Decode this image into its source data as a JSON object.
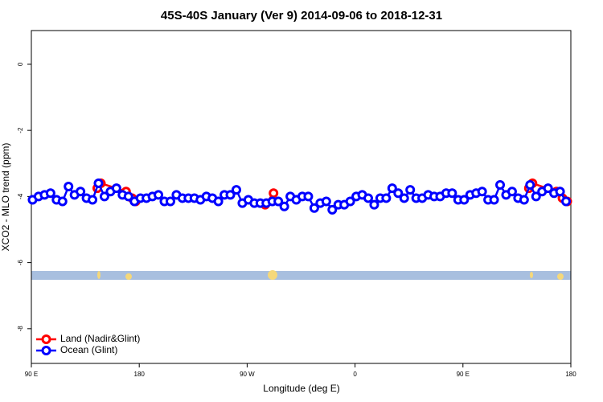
{
  "chart_data": {
    "type": "line",
    "title": "45S-40S January (Ver 9)   2014-09-06 to 2018-12-31",
    "x_label": "Longitude (deg E)",
    "y_label": "XCO2 - MLO trend (ppm)",
    "xlim": [
      90,
      540
    ],
    "ylim": [
      -9.05,
      1.02
    ],
    "xticks": [
      {
        "value": 90,
        "label": "90 E"
      },
      180,
      {
        "value": 270,
        "label": "90 W"
      },
      {
        "value": 360,
        "label": "0"
      },
      {
        "value": 450,
        "label": "90 E"
      },
      {
        "value": 540,
        "label": "180"
      }
    ],
    "yticks": [
      0,
      -2,
      -4,
      -6,
      -8
    ],
    "legend": "bottom-left",
    "series": [
      {
        "name": "Land (Nadir&Glint)",
        "color": "#ff0000",
        "x": [
          145,
          148,
          169,
          174,
          177,
          null,
          285,
          292,
          null,
          505,
          508,
          528,
          533,
          537
        ],
        "values": [
          -3.75,
          -3.6,
          -3.85,
          -4.05,
          -4.15,
          null,
          -4.25,
          -3.9,
          null,
          -3.75,
          -3.6,
          -3.85,
          -4.05,
          -4.15
        ]
      },
      {
        "name": "Ocean (Glint)",
        "color": "#0000ff",
        "x": [
          91,
          96,
          101,
          106,
          111,
          116,
          121,
          126,
          131,
          136,
          141,
          146,
          151,
          156,
          161,
          166,
          171,
          176,
          181,
          186,
          191,
          196,
          201,
          206,
          211,
          216,
          221,
          226,
          231,
          236,
          241,
          246,
          251,
          256,
          261,
          266,
          271,
          276,
          281,
          286,
          291,
          296,
          301,
          306,
          311,
          316,
          321,
          326,
          331,
          336,
          341,
          346,
          351,
          356,
          361,
          366,
          371,
          376,
          381,
          386,
          391,
          396,
          401,
          406,
          411,
          416,
          421,
          426,
          431,
          436,
          441,
          446,
          451,
          456,
          461,
          466,
          471,
          476,
          481,
          486,
          491,
          496,
          501,
          506,
          511,
          516,
          521,
          526,
          531,
          536
        ],
        "values": [
          -4.1,
          -4.0,
          -3.95,
          -3.9,
          -4.1,
          -4.15,
          -3.7,
          -3.95,
          -3.85,
          -4.05,
          -4.1,
          -3.6,
          -4.0,
          -3.85,
          -3.75,
          -3.95,
          -4.0,
          -4.15,
          -4.05,
          -4.05,
          -4.0,
          -3.95,
          -4.15,
          -4.15,
          -3.95,
          -4.05,
          -4.05,
          -4.05,
          -4.1,
          -4.0,
          -4.05,
          -4.15,
          -3.95,
          -3.95,
          -3.8,
          -4.2,
          -4.1,
          -4.2,
          -4.2,
          -4.2,
          -4.15,
          -4.15,
          -4.3,
          -4.0,
          -4.1,
          -4.0,
          -4.0,
          -4.35,
          -4.2,
          -4.15,
          -4.4,
          -4.25,
          -4.25,
          -4.15,
          -4.0,
          -3.95,
          -4.05,
          -4.25,
          -4.05,
          -4.05,
          -3.75,
          -3.9,
          -4.05,
          -3.8,
          -4.05,
          -4.05,
          -3.95,
          -4.0,
          -4.0,
          -3.9,
          -3.9,
          -4.1,
          -4.1,
          -3.95,
          -3.9,
          -3.85,
          -4.1,
          -4.1,
          -3.65,
          -3.95,
          -3.85,
          -4.05,
          -4.1,
          -3.65,
          -4.0,
          -3.85,
          -3.75,
          -3.9,
          -3.85,
          -4.15
        ]
      }
    ]
  }
}
